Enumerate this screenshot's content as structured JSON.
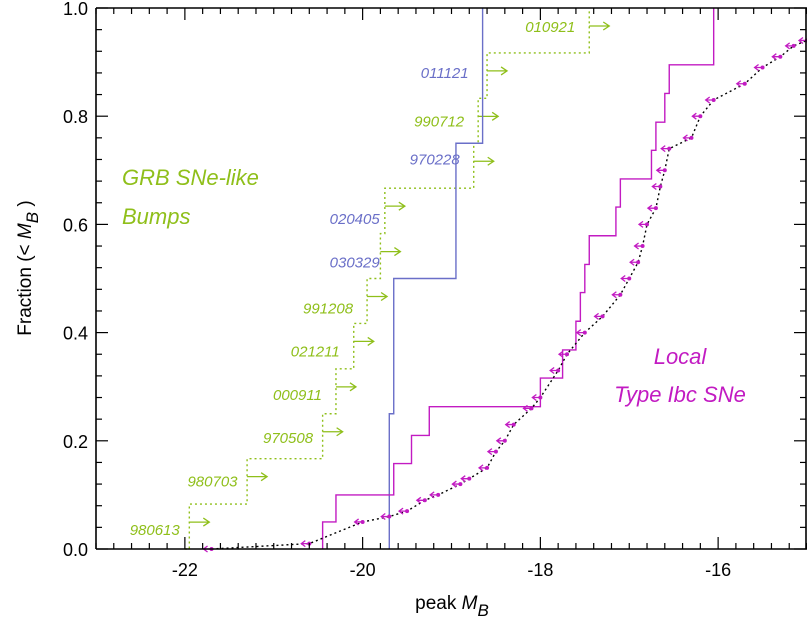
{
  "chart_data": {
    "type": "line",
    "xlabel": "peak M_B",
    "ylabel": "Fraction (< M_B)",
    "xlim": [
      -23.0,
      -15.0
    ],
    "ylim": [
      0.0,
      1.0
    ],
    "x_reversed": false,
    "x_ticks": [
      -22,
      -20,
      -18,
      -16
    ],
    "y_ticks": [
      0.0,
      0.2,
      0.4,
      0.6,
      0.8,
      1.0
    ],
    "x_tick_labels": [
      "-22",
      "-20",
      "-18",
      "-16"
    ],
    "y_tick_labels": [
      "0.0",
      "0.2",
      "0.4",
      "0.6",
      "0.8",
      "1.0"
    ],
    "x_label_parts": {
      "text": "peak ",
      "symbol": "M",
      "subscript": "B"
    },
    "y_label_parts": {
      "text": "Fraction (< ",
      "symbol": "M",
      "subscript": "B",
      "close": ")"
    },
    "colors": {
      "grb_bumps": "#8fbf1a",
      "grb_sne": "#6a6fc8",
      "local_ibc": "#c21bc2",
      "local_ibc_limits": "#000000",
      "axes": "#000000"
    },
    "annotations": [
      {
        "text": "GRB SNe-like",
        "color": "#8fbf1a"
      },
      {
        "text": "Bumps",
        "color": "#8fbf1a"
      },
      {
        "text": "Local",
        "color": "#c21bc2"
      },
      {
        "text": "Type Ibc SNe",
        "color": "#c21bc2"
      }
    ],
    "series": [
      {
        "style": "dotted",
        "color": "#8fbf1a",
        "markers": "right-arrow lower limits",
        "steps": [
          {
            "x": -22.0,
            "y": 0.0
          },
          {
            "x": -21.95,
            "y": 0.083
          },
          {
            "x": -21.3,
            "y": 0.167
          },
          {
            "x": -20.45,
            "y": 0.25
          },
          {
            "x": -20.3,
            "y": 0.333
          },
          {
            "x": -20.1,
            "y": 0.417
          },
          {
            "x": -19.95,
            "y": 0.5
          },
          {
            "x": -19.8,
            "y": 0.583
          },
          {
            "x": -19.75,
            "y": 0.667
          },
          {
            "x": -18.75,
            "y": 0.75
          },
          {
            "x": -18.7,
            "y": 0.833
          },
          {
            "x": -18.6,
            "y": 0.917
          },
          {
            "x": -17.45,
            "y": 1.0
          }
        ],
        "labels": [
          {
            "text": "980613",
            "x": -21.9,
            "y": 0.035
          },
          {
            "text": "980703",
            "x": -21.25,
            "y": 0.125
          },
          {
            "text": "970508",
            "x": -20.4,
            "y": 0.205
          },
          {
            "text": "000911",
            "x": -20.3,
            "y": 0.285
          },
          {
            "text": "021211",
            "x": -20.1,
            "y": 0.365
          },
          {
            "text": "991208",
            "x": -19.95,
            "y": 0.445
          },
          {
            "text": "990712",
            "x": -18.7,
            "y": 0.79
          },
          {
            "text": "010921",
            "x": -17.45,
            "y": 0.965
          }
        ]
      },
      {
        "style": "solid",
        "color": "#6a6fc8",
        "steps": [
          {
            "x": -19.7,
            "y": 0.0
          },
          {
            "x": -19.7,
            "y": 0.25
          },
          {
            "x": -19.65,
            "y": 0.5
          },
          {
            "x": -18.95,
            "y": 0.75
          },
          {
            "x": -18.65,
            "y": 1.0
          }
        ],
        "labels": [
          {
            "text": "011121",
            "x": -18.65,
            "y": 0.88
          },
          {
            "text": "970228",
            "x": -18.75,
            "y": 0.72
          },
          {
            "text": "020405",
            "x": -19.65,
            "y": 0.61
          },
          {
            "text": "030329",
            "x": -19.65,
            "y": 0.53
          }
        ]
      },
      {
        "style": "solid",
        "color": "#c21bc2",
        "steps": [
          {
            "x": -20.45,
            "y": 0.0
          },
          {
            "x": -20.45,
            "y": 0.05
          },
          {
            "x": -20.3,
            "y": 0.1
          },
          {
            "x": -19.65,
            "y": 0.158
          },
          {
            "x": -19.45,
            "y": 0.21
          },
          {
            "x": -19.25,
            "y": 0.263
          },
          {
            "x": -18.0,
            "y": 0.316
          },
          {
            "x": -17.75,
            "y": 0.368
          },
          {
            "x": -17.6,
            "y": 0.421
          },
          {
            "x": -17.55,
            "y": 0.474
          },
          {
            "x": -17.5,
            "y": 0.526
          },
          {
            "x": -17.45,
            "y": 0.579
          },
          {
            "x": -17.15,
            "y": 0.632
          },
          {
            "x": -17.1,
            "y": 0.684
          },
          {
            "x": -16.75,
            "y": 0.737
          },
          {
            "x": -16.7,
            "y": 0.789
          },
          {
            "x": -16.6,
            "y": 0.842
          },
          {
            "x": -16.55,
            "y": 0.895
          },
          {
            "x": -16.05,
            "y": 1.0
          }
        ]
      },
      {
        "style": "dotted",
        "color": "#000000",
        "markers": "left-arrow upper limits",
        "marker_color": "#c21bc2",
        "points": [
          [
            -21.7,
            0.0
          ],
          [
            -20.6,
            0.01
          ],
          [
            -20.0,
            0.05
          ],
          [
            -19.7,
            0.06
          ],
          [
            -19.5,
            0.07
          ],
          [
            -19.3,
            0.09
          ],
          [
            -19.15,
            0.1
          ],
          [
            -18.9,
            0.12
          ],
          [
            -18.8,
            0.13
          ],
          [
            -18.6,
            0.15
          ],
          [
            -18.5,
            0.18
          ],
          [
            -18.4,
            0.2
          ],
          [
            -18.3,
            0.23
          ],
          [
            -18.1,
            0.26
          ],
          [
            -18.0,
            0.28
          ],
          [
            -17.8,
            0.33
          ],
          [
            -17.7,
            0.36
          ],
          [
            -17.5,
            0.4
          ],
          [
            -17.3,
            0.43
          ],
          [
            -17.1,
            0.47
          ],
          [
            -17.0,
            0.5
          ],
          [
            -16.9,
            0.53
          ],
          [
            -16.85,
            0.56
          ],
          [
            -16.8,
            0.6
          ],
          [
            -16.7,
            0.63
          ],
          [
            -16.65,
            0.67
          ],
          [
            -16.6,
            0.7
          ],
          [
            -16.55,
            0.74
          ],
          [
            -16.3,
            0.76
          ],
          [
            -16.2,
            0.8
          ],
          [
            -16.05,
            0.83
          ],
          [
            -15.7,
            0.86
          ],
          [
            -15.5,
            0.89
          ],
          [
            -15.3,
            0.91
          ],
          [
            -15.15,
            0.93
          ],
          [
            -15.0,
            0.94
          ]
        ]
      }
    ]
  }
}
